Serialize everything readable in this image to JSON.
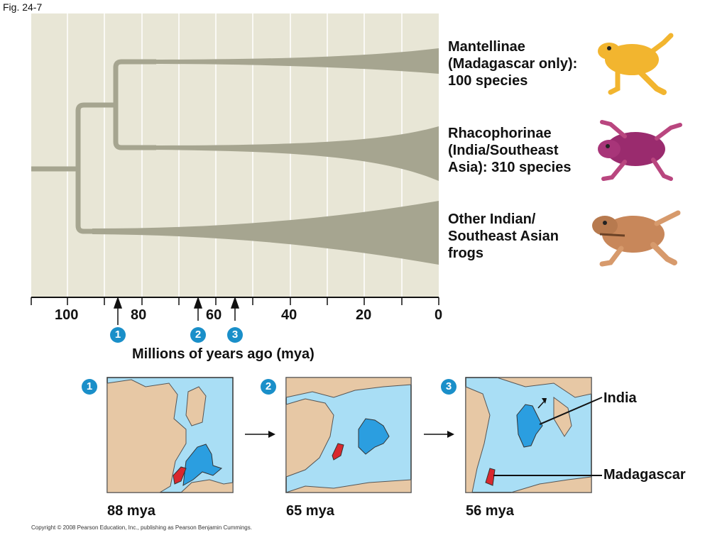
{
  "figure_label": "Fig. 24-7",
  "tree": {
    "xlabel": "Millions of years ago (mya)",
    "x_ticks": [
      "100",
      "80",
      "60",
      "40",
      "20",
      "0"
    ],
    "clades": [
      {
        "label": "Mantellinae\n(Madagascar only):\n100 species",
        "image": "orange-frog-icon"
      },
      {
        "label": "Rhacophorinae\n(India/Southeast\nAsia): 310 species",
        "image": "purple-frog-icon"
      },
      {
        "label": "Other Indian/\nSoutheast Asian\nfrogs",
        "image": "brown-frog-icon"
      }
    ],
    "markers": [
      "1",
      "2",
      "3"
    ]
  },
  "maps": [
    {
      "number": "1",
      "caption": "88 mya"
    },
    {
      "number": "2",
      "caption": "65 mya"
    },
    {
      "number": "3",
      "caption": "56 mya"
    }
  ],
  "map_labels": {
    "india": "India",
    "madagascar": "Madagascar"
  },
  "copyright": "Copyright © 2008 Pearson Education, Inc., publishing as Pearson Benjamin Cummings.",
  "colors": {
    "panel": "#e8e6d6",
    "branch": "#a6a590",
    "ocean": "#a9def5",
    "land": "#e7c8a5",
    "india": "#2b9ee0",
    "madagascar": "#d9282e",
    "badge": "#1a8fc9"
  }
}
